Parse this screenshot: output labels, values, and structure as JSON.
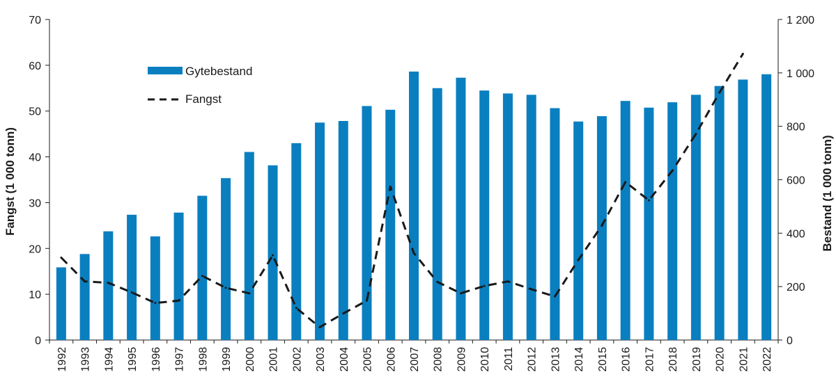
{
  "chart_data": {
    "type": "bar",
    "categories": [
      "1992",
      "1993",
      "1994",
      "1995",
      "1996",
      "1997",
      "1998",
      "1999",
      "2000",
      "2001",
      "2002",
      "2003",
      "2004",
      "2005",
      "2006",
      "2007",
      "2008",
      "2009",
      "2010",
      "2011",
      "2012",
      "2013",
      "2014",
      "2015",
      "2016",
      "2017",
      "2018",
      "2019",
      "2020",
      "2021",
      "2022"
    ],
    "series": [
      {
        "name": "Gytebestand",
        "type": "bar",
        "axis": "right",
        "color": "#0a7fc0",
        "values": [
          272,
          322,
          407,
          469,
          388,
          477,
          540,
          606,
          704,
          654,
          737,
          814,
          820,
          876,
          862,
          1005,
          943,
          982,
          934,
          923,
          918,
          868,
          818,
          838,
          895,
          870,
          890,
          918,
          951,
          975,
          995
        ]
      },
      {
        "name": "Fangst",
        "type": "line",
        "axis": "left",
        "color": "#1a1a1a",
        "style": "dashed",
        "values": [
          18,
          12.8,
          12.5,
          10.4,
          8.1,
          8.6,
          14,
          11.4,
          10.2,
          18.5,
          7,
          2.8,
          5.8,
          8.6,
          33.5,
          19,
          12.7,
          10.2,
          11.8,
          12.8,
          11.1,
          9.5,
          17.5,
          25,
          34.5,
          30.5,
          37,
          45,
          54,
          62.5,
          null
        ]
      }
    ],
    "ylabel": "Fangst (1 000 tonn)",
    "ylabel_right": "Bestand (1 000 tonn)",
    "ylim": [
      0,
      70
    ],
    "ylim_right": [
      0,
      1200
    ],
    "yticks": [
      "0",
      "10",
      "20",
      "30",
      "40",
      "50",
      "60",
      "70"
    ],
    "yticks_right": [
      "0",
      "200",
      "400",
      "600",
      "800",
      "1 000",
      "1 200"
    ],
    "legend": {
      "placement": "top-left"
    },
    "grid": false
  }
}
